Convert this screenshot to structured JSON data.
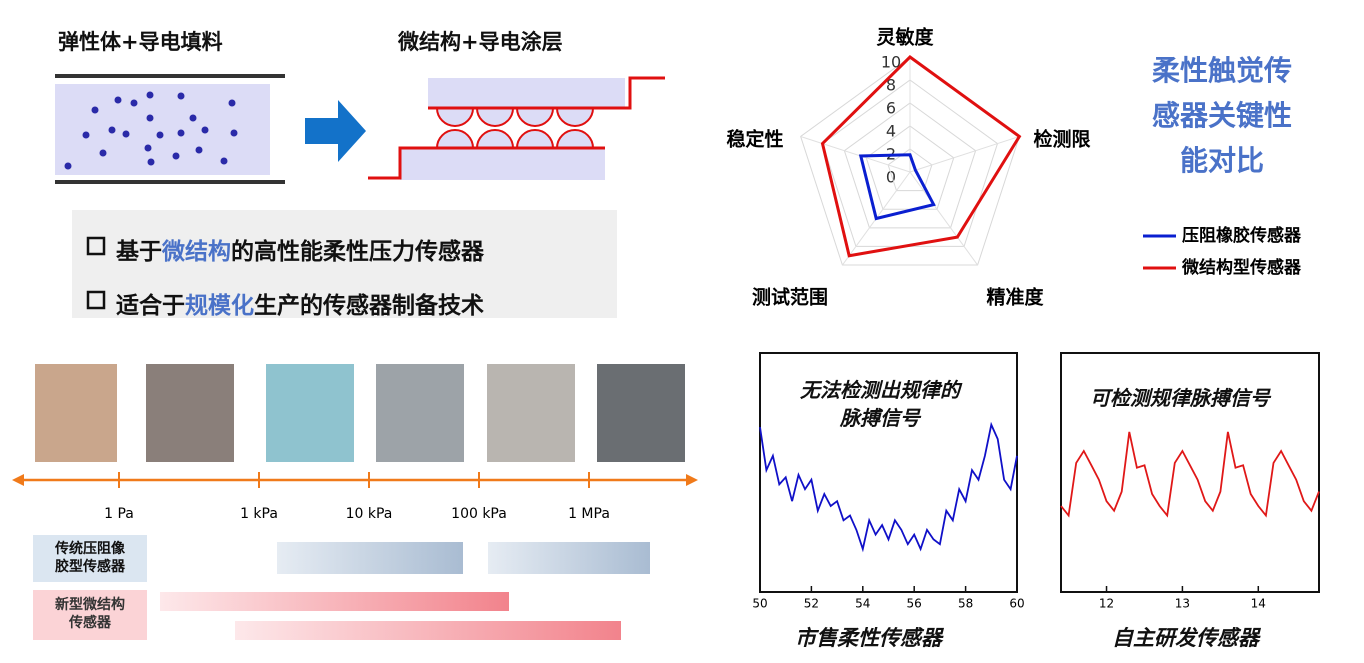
{
  "diagram": {
    "left_label": "弹性体+导电填料",
    "right_label": "微结构+导电涂层"
  },
  "bullets": [
    [
      "基于",
      "微结构",
      "的高性能柔性压力传感器"
    ],
    [
      "适合于",
      "规模化",
      "生产的传感器制备技术"
    ]
  ],
  "pressure_scale": {
    "labels": [
      "1 Pa",
      "1 kPa",
      "10 kPa",
      "100 kPa",
      "1 MPa"
    ],
    "rows": [
      "传统压阻像胶型传感器",
      "新型微结构传感器"
    ]
  },
  "chart_data": [
    {
      "type": "radar",
      "title": "柔性触觉传感器关键性能对比",
      "categories": [
        "灵敏度",
        "检测限",
        "精准度",
        "测试范围",
        "稳定性"
      ],
      "rlim": [
        0,
        10
      ],
      "rticks": [
        0,
        2,
        4,
        6,
        8,
        10
      ],
      "series": [
        {
          "name": "压阻橡胶传感器",
          "color": "#0a1fd0",
          "values": [
            1.5,
            0.5,
            3.5,
            5,
            4.5
          ]
        },
        {
          "name": "微结构型传感器",
          "color": "#e01010",
          "values": [
            10,
            10,
            7,
            9,
            8
          ]
        }
      ]
    },
    {
      "type": "line",
      "title": "无法检测出规律的脉搏信号",
      "caption": "市售柔性传感器",
      "color": "#1010c8",
      "xlim": [
        50,
        60
      ],
      "xticks": [
        50,
        52,
        54,
        56,
        58,
        60
      ],
      "ylim": [
        0,
        100
      ],
      "x": [
        50,
        50.25,
        50.5,
        50.75,
        51,
        51.25,
        51.5,
        51.75,
        52,
        52.25,
        52.5,
        52.75,
        53,
        53.25,
        53.5,
        53.75,
        54,
        54.25,
        54.5,
        54.75,
        55,
        55.25,
        55.5,
        55.75,
        56,
        56.25,
        56.5,
        56.75,
        57,
        57.25,
        57.5,
        57.75,
        58,
        58.25,
        58.5,
        58.75,
        59,
        59.25,
        59.5,
        59.75,
        60
      ],
      "values": [
        69,
        51,
        57,
        45,
        48,
        38,
        49,
        43,
        47,
        34,
        41,
        36,
        38,
        30,
        32,
        26,
        18,
        30,
        24,
        28,
        22,
        30,
        26,
        20,
        24,
        18,
        26,
        22,
        20,
        34,
        30,
        43,
        38,
        51,
        47,
        57,
        70,
        64,
        47,
        43,
        57
      ]
    },
    {
      "type": "line",
      "title": "可检测规律脉搏信号",
      "caption": "自主研发传感器",
      "color": "#e01818",
      "xlim": [
        11.4,
        14.8
      ],
      "xticks": [
        12,
        13,
        14
      ],
      "ylim": [
        0,
        100
      ],
      "x": [
        11.4,
        11.5,
        11.6,
        11.7,
        11.8,
        11.9,
        12.0,
        12.1,
        12.2,
        12.3,
        12.4,
        12.5,
        12.6,
        12.7,
        12.8,
        12.9,
        13.0,
        13.1,
        13.2,
        13.3,
        13.4,
        13.5,
        13.6,
        13.7,
        13.8,
        13.9,
        14.0,
        14.1,
        14.2,
        14.3,
        14.4,
        14.5,
        14.6,
        14.7,
        14.8
      ],
      "values": [
        36,
        32,
        54,
        59,
        53,
        47,
        38,
        34,
        42,
        67,
        52,
        53,
        41,
        36,
        32,
        54,
        59,
        53,
        47,
        38,
        34,
        42,
        67,
        52,
        53,
        41,
        36,
        32,
        54,
        59,
        53,
        47,
        38,
        34,
        42
      ]
    }
  ]
}
